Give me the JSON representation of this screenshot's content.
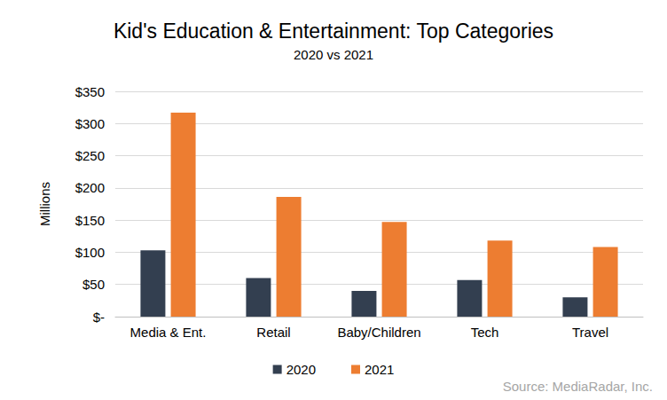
{
  "chart_data": {
    "type": "bar",
    "title": "Kid's Education & Entertainment: Top Categories",
    "subtitle": "2020 vs 2021",
    "ylabel": "Millions",
    "annotations": [
      "Source: MediaRadar, Inc."
    ],
    "categories": [
      "Media & Ent.",
      "Retail",
      "Baby/Children",
      "Tech",
      "Travel"
    ],
    "series": [
      {
        "name": "2020",
        "color": "#333f50",
        "values": [
          103,
          60,
          40,
          57,
          30
        ]
      },
      {
        "name": "2021",
        "color": "#ed7d31",
        "values": [
          317,
          186,
          147,
          118,
          108
        ]
      }
    ],
    "ylim": [
      0,
      350
    ],
    "yticks": [
      {
        "value": 0,
        "label": "$-"
      },
      {
        "value": 50,
        "label": "$50"
      },
      {
        "value": 100,
        "label": "$100"
      },
      {
        "value": 150,
        "label": "$150"
      },
      {
        "value": 200,
        "label": "$200"
      },
      {
        "value": 250,
        "label": "$250"
      },
      {
        "value": 300,
        "label": "$300"
      },
      {
        "value": 350,
        "label": "$350"
      }
    ],
    "grid": true,
    "legend": "bottom"
  }
}
